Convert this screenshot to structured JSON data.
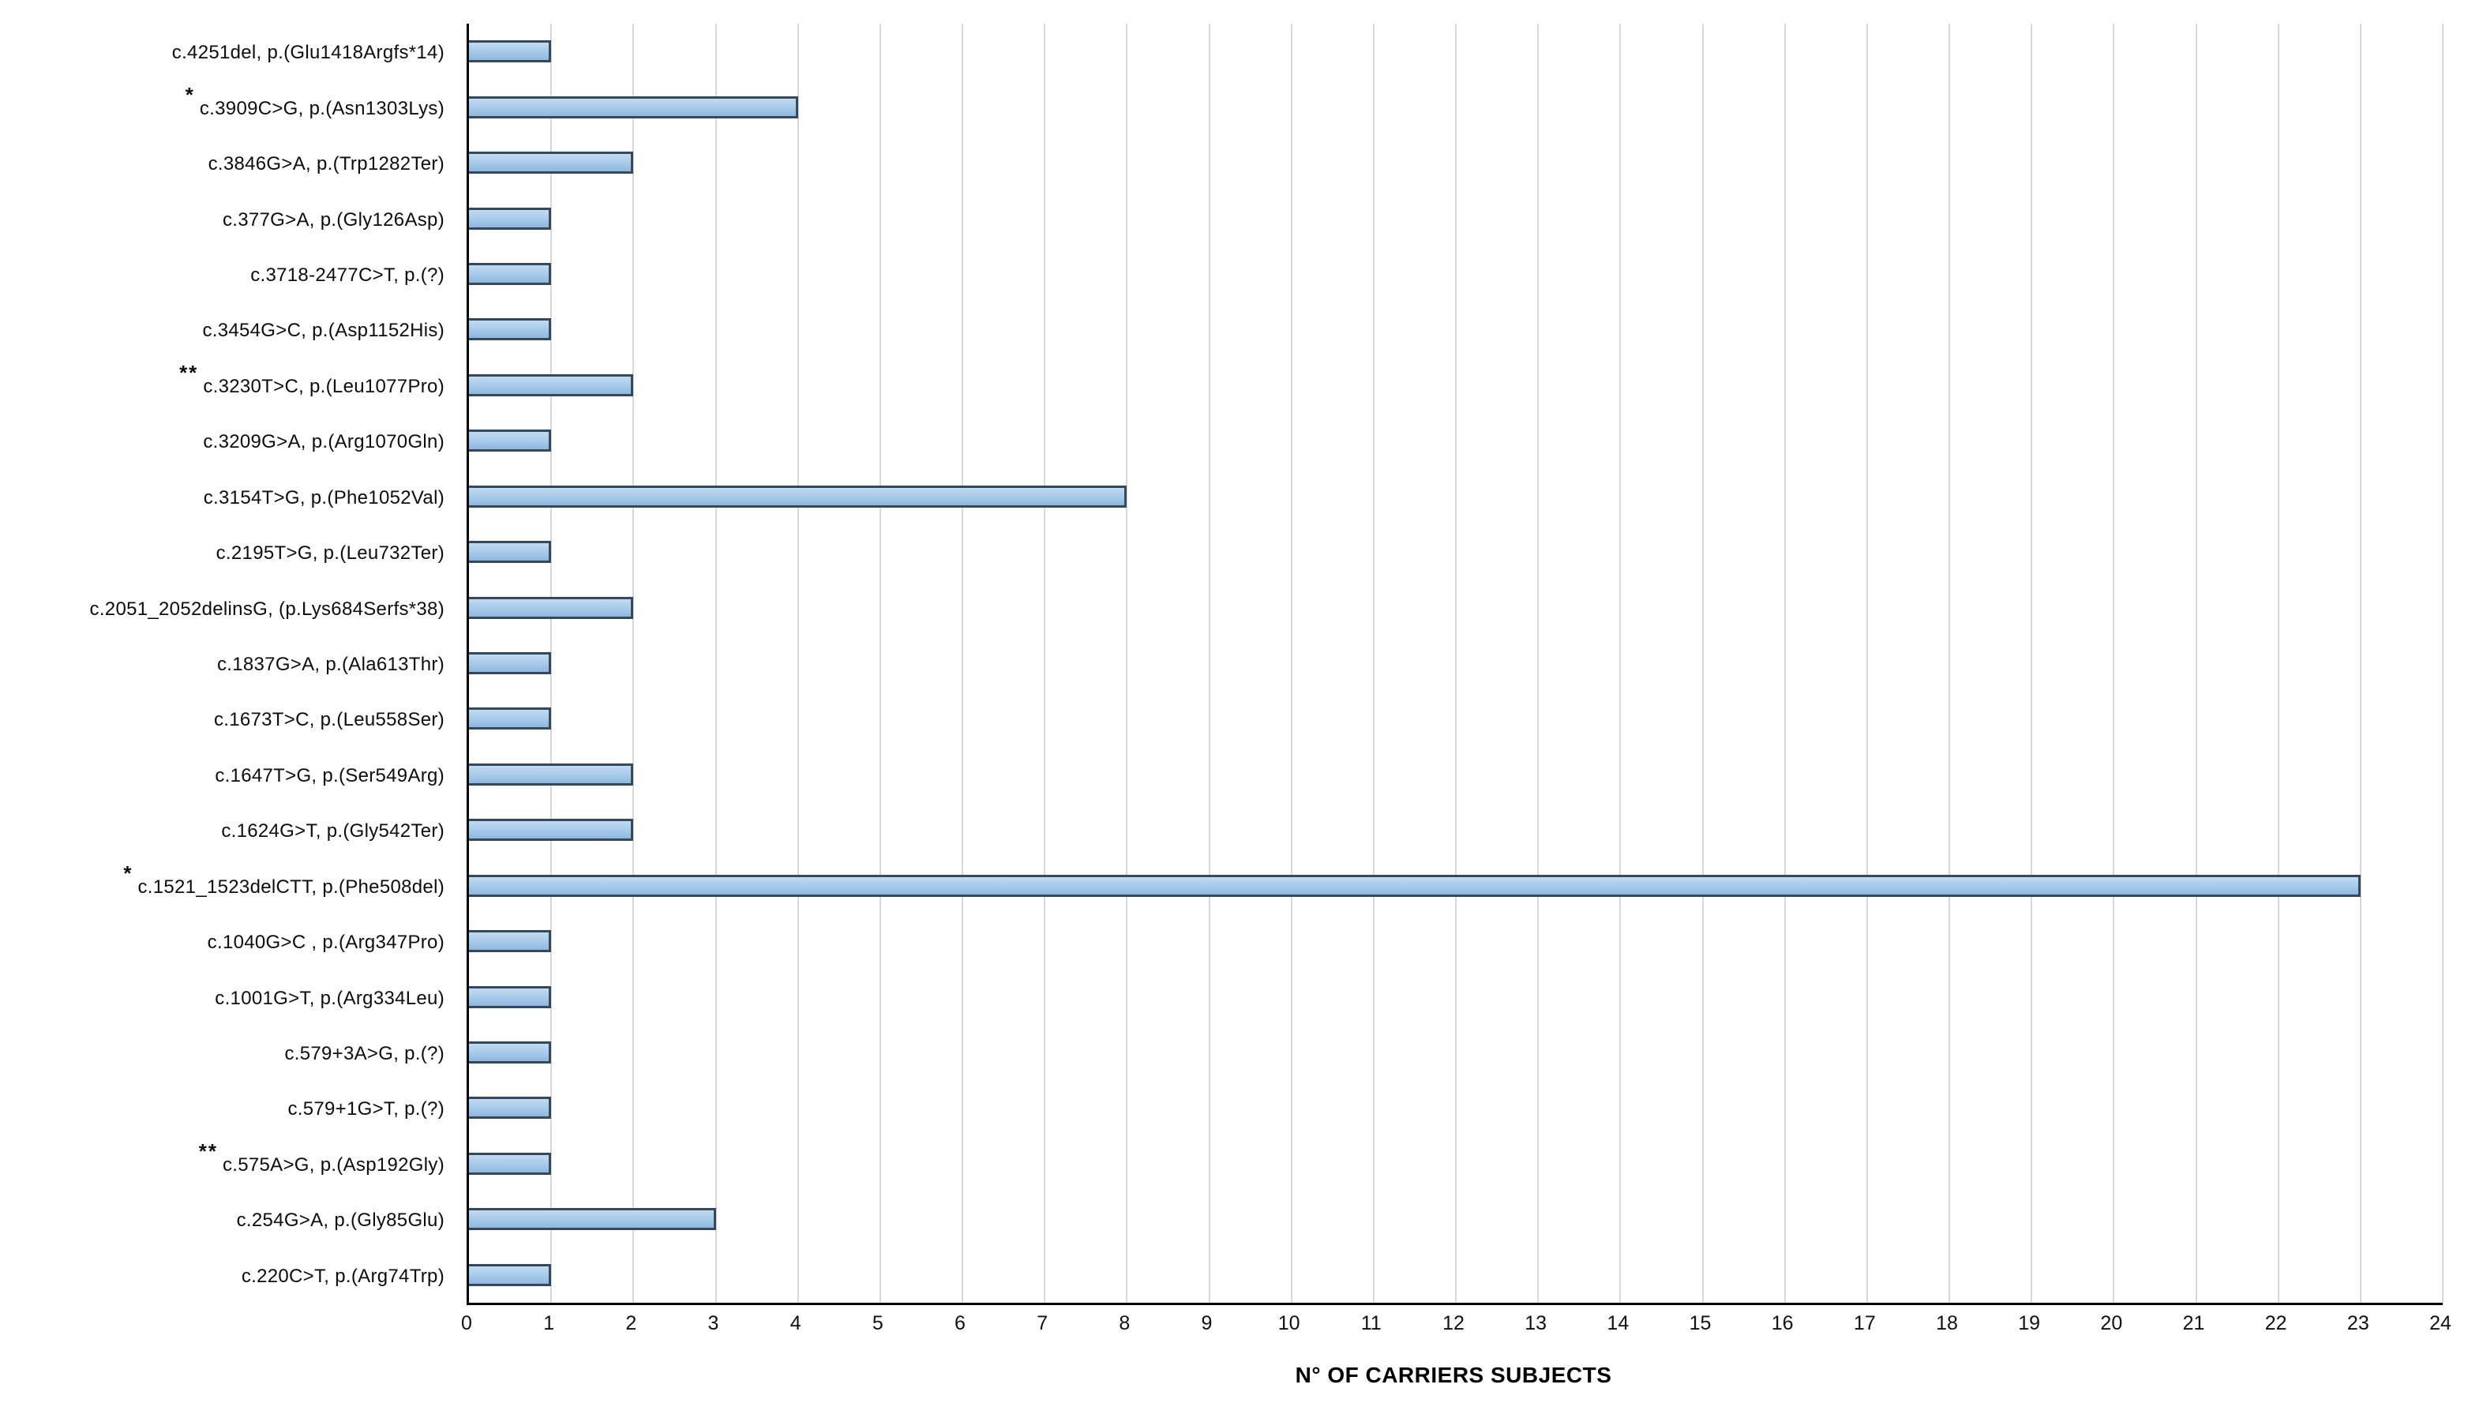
{
  "chart_data": {
    "type": "bar",
    "orientation": "horizontal",
    "title": "",
    "xlabel": "N° OF CARRIERS SUBJECTS",
    "ylabel": "",
    "xlim": [
      0,
      24
    ],
    "xticks": [
      0,
      1,
      2,
      3,
      4,
      5,
      6,
      7,
      8,
      9,
      10,
      11,
      12,
      13,
      14,
      15,
      16,
      17,
      18,
      19,
      20,
      21,
      22,
      23,
      24
    ],
    "grid": "vertical",
    "legend": "none",
    "categories": [
      "c.4251del, p.(Glu1418Argfs*14)",
      "c.3909C>G, p.(Asn1303Lys)",
      "c.3846G>A, p.(Trp1282Ter)",
      "c.377G>A, p.(Gly126Asp)",
      "c.3718-2477C>T, p.(?)",
      "c.3454G>C, p.(Asp1152His)",
      "c.3230T>C, p.(Leu1077Pro)",
      "c.3209G>A, p.(Arg1070Gln)",
      "c.3154T>G, p.(Phe1052Val)",
      "c.2195T>G, p.(Leu732Ter)",
      "c.2051_2052delinsG, (p.Lys684Serfs*38)",
      "c.1837G>A, p.(Ala613Thr)",
      "c.1673T>C, p.(Leu558Ser)",
      "c.1647T>G, p.(Ser549Arg)",
      "c.1624G>T, p.(Gly542Ter)",
      "c.1521_1523delCTT, p.(Phe508del)",
      "c.1040G>C , p.(Arg347Pro)",
      "c.1001G>T, p.(Arg334Leu)",
      "c.579+3A>G, p.(?)",
      "c.579+1G>T, p.(?)",
      "c.575A>G, p.(Asp192Gly)",
      "c.254G>A, p.(Gly85Glu)",
      "c.220C>T, p.(Arg74Trp)"
    ],
    "marks": [
      "",
      "*",
      "",
      "",
      "",
      "",
      "**",
      "",
      "",
      "",
      "",
      "",
      "",
      "",
      "",
      "*",
      "",
      "",
      "",
      "",
      "**",
      "",
      ""
    ],
    "values": [
      1,
      4,
      2,
      1,
      1,
      1,
      2,
      1,
      8,
      1,
      2,
      1,
      1,
      2,
      2,
      23,
      1,
      1,
      1,
      1,
      1,
      3,
      1
    ]
  },
  "colors": {
    "bar_fill": "#9cc2e5",
    "bar_border": "#33495e",
    "gridline": "#d9d9d9",
    "axis_line": "#000000",
    "text": "#0d0d0d"
  }
}
